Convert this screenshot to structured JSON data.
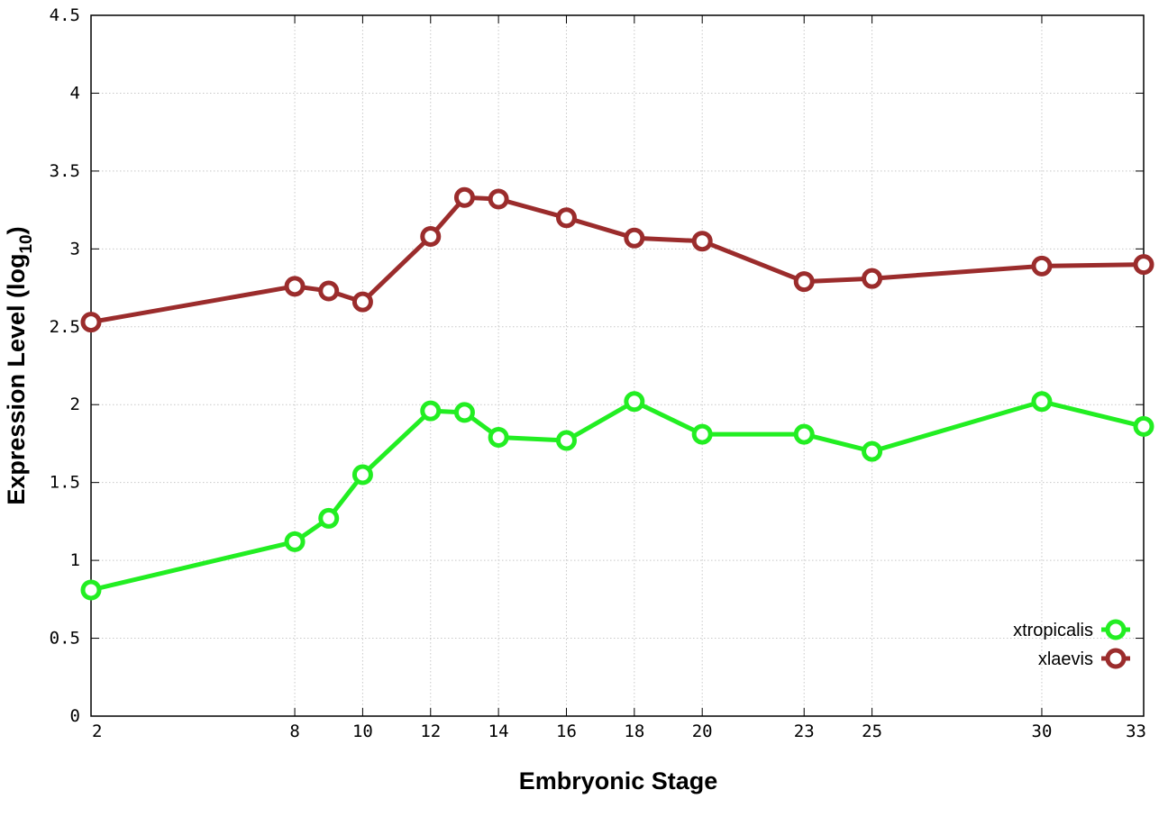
{
  "chart_data": {
    "type": "line",
    "xlabel": "Embryonic Stage",
    "ylabel_main": "Expression Level (log",
    "ylabel_sub": "10",
    "ylabel_close": ")",
    "x_ticks": [
      "2",
      "8",
      "10",
      "12",
      "14",
      "16",
      "18",
      "20",
      "23",
      "25",
      "30",
      "33"
    ],
    "y_ticks": [
      "0",
      "0.5",
      "1",
      "1.5",
      "2",
      "2.5",
      "3",
      "3.5",
      "4",
      "4.5"
    ],
    "xlim": [
      2,
      33
    ],
    "ylim": [
      0,
      4.5
    ],
    "grid": true,
    "legend_position": "bottom-right",
    "series": [
      {
        "name": "xtropicalis",
        "color": "#22ee22",
        "x": [
          2,
          8,
          9,
          10,
          12,
          13,
          14,
          16,
          18,
          20,
          23,
          25,
          30,
          33
        ],
        "y": [
          0.81,
          1.12,
          1.27,
          1.55,
          1.96,
          1.95,
          1.79,
          1.77,
          2.02,
          1.81,
          1.81,
          1.7,
          2.02,
          1.86
        ]
      },
      {
        "name": "xlaevis",
        "color": "#9b2c2c",
        "x": [
          2,
          8,
          9,
          10,
          12,
          13,
          14,
          16,
          18,
          20,
          23,
          25,
          30,
          33
        ],
        "y": [
          2.53,
          2.76,
          2.73,
          2.66,
          3.08,
          3.33,
          3.32,
          3.2,
          3.07,
          3.05,
          2.79,
          2.81,
          2.89,
          2.9
        ]
      }
    ]
  }
}
